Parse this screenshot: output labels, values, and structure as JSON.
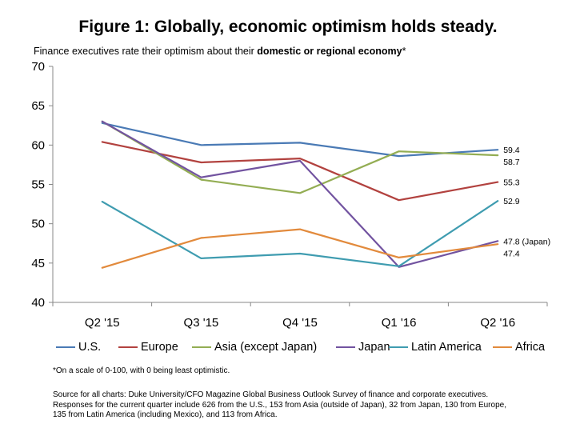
{
  "header": {
    "title": "Figure 1: Globally, economic optimism holds steady.",
    "subtitle_pre": "Finance executives rate their optimism about their ",
    "subtitle_bold": "domestic or regional economy",
    "subtitle_post": "*"
  },
  "notes": {
    "footnote": "*On a scale of 0-100, with 0 being least optimistic.",
    "source_lines": [
      "Source for all charts: Duke University/CFO Magazine Global Business Outlook Survey of finance and corporate executives.",
      "Responses for the current quarter include 626 from the U.S., 153 from Asia (outside of Japan), 32 from Japan, 130 from Europe,",
      "135 from Latin America (including Mexico), and 113 from Africa."
    ]
  },
  "chart_data": {
    "type": "line",
    "title": "Figure 1: Globally, economic optimism holds steady.",
    "xlabel": "",
    "ylabel": "",
    "categories": [
      "Q2 '15",
      "Q3 '15",
      "Q4 '15",
      "Q1 '16",
      "Q2 '16"
    ],
    "ylim": [
      40,
      70
    ],
    "yticks": [
      "40",
      "45",
      "50",
      "55",
      "60",
      "65",
      "70"
    ],
    "grid": false,
    "legend_position": "bottom",
    "series": [
      {
        "name": "U.S.",
        "color": "#4a7ab5",
        "values": [
          62.8,
          60.0,
          60.3,
          58.6,
          59.4
        ],
        "end_label": "59.4"
      },
      {
        "name": "Europe",
        "color": "#b2423f",
        "values": [
          60.4,
          57.8,
          58.3,
          53.0,
          55.3
        ],
        "end_label": "55.3"
      },
      {
        "name": "Asia (except Japan)",
        "color": "#93ad53",
        "values": [
          63.0,
          55.6,
          53.9,
          59.2,
          58.7
        ],
        "end_label": "58.7"
      },
      {
        "name": "Japan",
        "color": "#7253a0",
        "values": [
          63.0,
          55.9,
          58.0,
          44.5,
          47.8
        ],
        "end_label": "47.8 (Japan)"
      },
      {
        "name": "Latin America",
        "color": "#3f9cb0",
        "values": [
          52.8,
          45.6,
          46.2,
          44.6,
          52.9
        ],
        "end_label": "52.9"
      },
      {
        "name": "Africa",
        "color": "#e28a3c",
        "values": [
          44.4,
          48.2,
          49.3,
          45.7,
          47.4
        ],
        "end_label": "47.4"
      }
    ]
  }
}
